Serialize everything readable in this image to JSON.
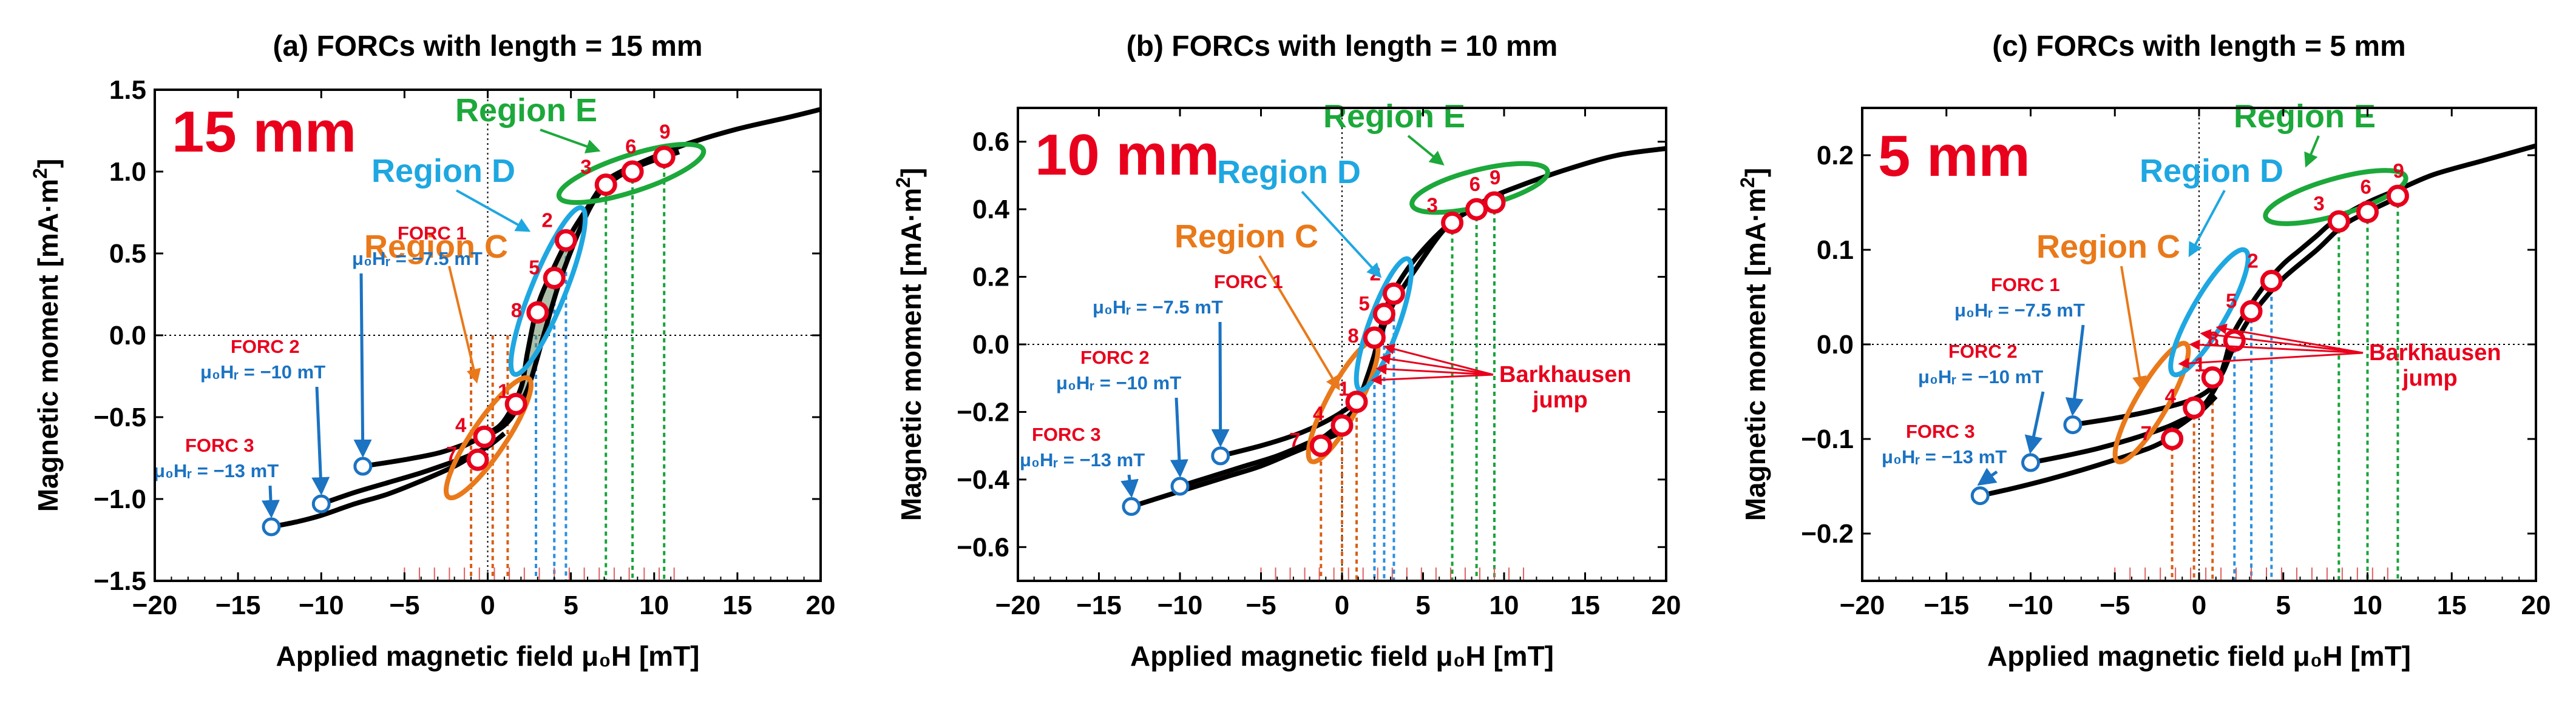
{
  "colors": {
    "red": "#e8001c",
    "blue": "#1b73c2",
    "green": "#1ca83a",
    "cyan": "#1ea7e1",
    "orange": "#e9791a",
    "loop_fill": "#6a8a62",
    "curve": "#000000",
    "guide_orange": "#d95f16",
    "guide_blue": "#2a8fe0",
    "guide_green": "#18a33a"
  },
  "labels": {
    "region_c": "Region C",
    "region_d": "Region D",
    "region_e": "Region E",
    "barkhausen_1": "Barkhausen",
    "barkhausen_2": "jump",
    "forc1": "FORC 1",
    "forc2": "FORC 2",
    "forc3": "FORC 3",
    "hr1": "μ₀Hᵣ = −7.5 mT",
    "hr2": "μ₀Hᵣ = −10 mT",
    "hr3": "μ₀Hᵣ = −13 mT",
    "point_numbers": [
      "1",
      "2",
      "3",
      "4",
      "5",
      "6",
      "7",
      "8",
      "9"
    ]
  },
  "chart_data": [
    {
      "type": "line",
      "title": "(a) FORCs with length = 15 mm",
      "sample_label": "15 mm",
      "xlabel": "Applied magnetic field μ₀H [mT]",
      "ylabel": "Magnetic moment [mA·m²]",
      "ylabel_main": "Magnetic moment [mA·m",
      "ylabel_sup": "2",
      "ylabel_end": "]",
      "xlim": [
        -20,
        20
      ],
      "ylim": [
        -1.5,
        1.5
      ],
      "xticks": [
        -20,
        -15,
        -10,
        -5,
        0,
        5,
        10,
        15,
        20
      ],
      "yticks": [
        -1.5,
        -1.0,
        -0.5,
        0.0,
        0.5,
        1.0,
        1.5
      ],
      "xtick_labels": [
        "−20",
        "−15",
        "−10",
        "−5",
        "0",
        "5",
        "10",
        "15",
        "20"
      ],
      "ytick_labels": [
        "−1.5",
        "−1.0",
        "−0.5",
        "0.0",
        "0.5",
        "1.0",
        "1.5"
      ],
      "upper_branch": {
        "x": [
          -1.5,
          0,
          1,
          2,
          2.4,
          3,
          4,
          5,
          6,
          7,
          8,
          10,
          12,
          15,
          18,
          20
        ],
        "y": [
          -0.68,
          -0.6,
          -0.52,
          -0.32,
          -0.1,
          0.18,
          0.42,
          0.62,
          0.78,
          0.93,
          1.0,
          1.09,
          1.17,
          1.26,
          1.33,
          1.38
        ]
      },
      "forc_curves": [
        {
          "name": "FORC 1",
          "hr": -7.5,
          "x": [
            -7.5,
            -5,
            -3,
            -1.5,
            0,
            1,
            1.7,
            2.5,
            3.5,
            4.5,
            6,
            7.2,
            9,
            11.5
          ],
          "y": [
            -0.8,
            -0.76,
            -0.72,
            -0.67,
            -0.61,
            -0.55,
            -0.46,
            -0.3,
            0.05,
            0.38,
            0.75,
            0.92,
            1.03,
            1.12
          ]
        },
        {
          "name": "FORC 2",
          "hr": -10,
          "x": [
            -10,
            -8,
            -6,
            -4,
            -2,
            -1,
            0,
            1
          ],
          "y": [
            -1.03,
            -0.96,
            -0.9,
            -0.84,
            -0.77,
            -0.73,
            -0.68,
            -0.6
          ]
        },
        {
          "name": "FORC 3",
          "hr": -13,
          "x": [
            -13,
            -11.5,
            -10,
            -8,
            -6,
            -4,
            -2,
            -1
          ],
          "y": [
            -1.17,
            -1.14,
            -1.1,
            -1.03,
            -0.97,
            -0.89,
            -0.8,
            -0.74
          ]
        }
      ],
      "reversal_points": [
        {
          "x": -7.5,
          "y": -0.8
        },
        {
          "x": -10,
          "y": -1.03
        },
        {
          "x": -13,
          "y": -1.17
        }
      ],
      "points": [
        {
          "n": "1",
          "x": 1.7,
          "y": -0.42
        },
        {
          "n": "2",
          "x": 4.7,
          "y": 0.58
        },
        {
          "n": "3",
          "x": 7.1,
          "y": 0.92
        },
        {
          "n": "4",
          "x": -0.2,
          "y": -0.62
        },
        {
          "n": "5",
          "x": 4.0,
          "y": 0.35
        },
        {
          "n": "6",
          "x": 8.7,
          "y": 1.0
        },
        {
          "n": "7",
          "x": -0.6,
          "y": -0.76
        },
        {
          "n": "8",
          "x": 3.0,
          "y": 0.14
        },
        {
          "n": "9",
          "x": 10.6,
          "y": 1.09
        }
      ],
      "guides": [
        {
          "x": -1.0,
          "color": "orange"
        },
        {
          "x": 0.3,
          "color": "orange"
        },
        {
          "x": 1.2,
          "color": "orange"
        },
        {
          "x": 2.9,
          "color": "blue"
        },
        {
          "x": 4.0,
          "color": "blue"
        },
        {
          "x": 4.7,
          "color": "blue"
        },
        {
          "x": 7.1,
          "color": "green"
        },
        {
          "x": 8.7,
          "color": "green"
        },
        {
          "x": 10.6,
          "color": "green"
        }
      ],
      "barkhausen": false
    },
    {
      "type": "line",
      "title": "(b) FORCs with length = 10 mm",
      "sample_label": "10 mm",
      "xlabel": "Applied magnetic field μ₀H [mT]",
      "ylabel": "Magnetic moment [mA·m²]",
      "ylabel_main": "Magnetic moment [mA·m",
      "ylabel_sup": "2",
      "ylabel_end": "]",
      "xlim": [
        -20,
        20
      ],
      "ylim": [
        -0.7,
        0.7
      ],
      "xticks": [
        -20,
        -15,
        -10,
        -5,
        0,
        5,
        10,
        15,
        20
      ],
      "yticks": [
        -0.6,
        -0.4,
        -0.2,
        0.0,
        0.2,
        0.4,
        0.6
      ],
      "xtick_labels": [
        "−20",
        "−15",
        "−10",
        "−5",
        "0",
        "5",
        "10",
        "15",
        "20"
      ],
      "ytick_labels": [
        "−0.6",
        "−0.4",
        "−0.2",
        "0.0",
        "0.2",
        "0.4",
        "0.6"
      ],
      "upper_branch": {
        "x": [
          -1,
          0,
          1,
          1.5,
          2,
          2.5,
          3,
          4,
          5,
          6,
          7,
          9,
          11,
          14,
          17,
          20
        ],
        "y": [
          -0.27,
          -0.23,
          -0.18,
          -0.12,
          -0.03,
          0.07,
          0.14,
          0.22,
          0.28,
          0.33,
          0.37,
          0.43,
          0.47,
          0.52,
          0.56,
          0.58
        ]
      },
      "forc_curves": [
        {
          "name": "FORC 1",
          "hr": -7.5,
          "x": [
            -7.5,
            -5,
            -3,
            -1.5,
            0,
            1,
            1.6,
            2.2,
            2.8,
            3.4,
            4.5,
            6.5,
            8.5,
            10
          ],
          "y": [
            -0.33,
            -0.3,
            -0.27,
            -0.24,
            -0.2,
            -0.16,
            -0.09,
            0.0,
            0.08,
            0.14,
            0.22,
            0.35,
            0.41,
            0.44
          ]
        },
        {
          "name": "FORC 2",
          "hr": -10,
          "x": [
            -10,
            -8,
            -6,
            -4,
            -2,
            -1,
            0,
            1
          ],
          "y": [
            -0.42,
            -0.39,
            -0.36,
            -0.33,
            -0.29,
            -0.27,
            -0.24,
            -0.19
          ]
        },
        {
          "name": "FORC 3",
          "hr": -13,
          "x": [
            -13,
            -11,
            -9,
            -7,
            -5,
            -3,
            -1,
            0
          ],
          "y": [
            -0.48,
            -0.45,
            -0.42,
            -0.39,
            -0.36,
            -0.32,
            -0.28,
            -0.26
          ]
        }
      ],
      "reversal_points": [
        {
          "x": -7.5,
          "y": -0.33
        },
        {
          "x": -10,
          "y": -0.42
        },
        {
          "x": -13,
          "y": -0.48
        }
      ],
      "points": [
        {
          "n": "1",
          "x": 0.9,
          "y": -0.17
        },
        {
          "n": "2",
          "x": 3.2,
          "y": 0.15
        },
        {
          "n": "3",
          "x": 6.8,
          "y": 0.36
        },
        {
          "n": "4",
          "x": 0.0,
          "y": -0.24
        },
        {
          "n": "5",
          "x": 2.6,
          "y": 0.09
        },
        {
          "n": "6",
          "x": 8.3,
          "y": 0.4
        },
        {
          "n": "7",
          "x": -1.3,
          "y": -0.3
        },
        {
          "n": "8",
          "x": 2.0,
          "y": 0.02
        },
        {
          "n": "9",
          "x": 9.4,
          "y": 0.42
        }
      ],
      "guides": [
        {
          "x": -1.3,
          "color": "orange"
        },
        {
          "x": 0.0,
          "color": "orange"
        },
        {
          "x": 0.9,
          "color": "orange"
        },
        {
          "x": 2.0,
          "color": "blue"
        },
        {
          "x": 2.6,
          "color": "blue"
        },
        {
          "x": 3.2,
          "color": "blue"
        },
        {
          "x": 6.8,
          "color": "green"
        },
        {
          "x": 8.3,
          "color": "green"
        },
        {
          "x": 9.4,
          "color": "green"
        }
      ],
      "barkhausen": true
    },
    {
      "type": "line",
      "title": "(c) FORCs with length = 5 mm",
      "sample_label": "5 mm",
      "xlabel": "Applied magnetic field μ₀H [mT]",
      "ylabel": "Magnetic moment [mA·m²]",
      "ylabel_main": "Magnetic moment [mA·m",
      "ylabel_sup": "2",
      "ylabel_end": "]",
      "xlim": [
        -20,
        20
      ],
      "ylim": [
        -0.25,
        0.25
      ],
      "xticks": [
        -20,
        -15,
        -10,
        -5,
        0,
        5,
        10,
        15,
        20
      ],
      "yticks": [
        -0.2,
        -0.1,
        0.0,
        0.1,
        0.2
      ],
      "xtick_labels": [
        "−20",
        "−15",
        "−10",
        "−5",
        "0",
        "5",
        "10",
        "15",
        "20"
      ],
      "ytick_labels": [
        "−0.2",
        "−0.1",
        "0.0",
        "0.1",
        "0.2"
      ],
      "upper_branch": {
        "x": [
          -1.5,
          0,
          1,
          1.5,
          2,
          3,
          4,
          5,
          6,
          7,
          8,
          10,
          12,
          14,
          17,
          20
        ],
        "y": [
          -0.09,
          -0.07,
          -0.045,
          -0.02,
          0.01,
          0.04,
          0.065,
          0.085,
          0.1,
          0.115,
          0.13,
          0.15,
          0.165,
          0.18,
          0.195,
          0.21
        ]
      },
      "forc_curves": [
        {
          "name": "FORC 1",
          "hr": -7.5,
          "x": [
            -7.5,
            -5,
            -3,
            -1,
            0,
            0.8,
            1.4,
            2,
            2.8,
            3.6,
            5,
            7,
            8.5,
            10,
            12
          ],
          "y": [
            -0.085,
            -0.078,
            -0.071,
            -0.062,
            -0.055,
            -0.045,
            -0.03,
            -0.005,
            0.022,
            0.042,
            0.07,
            0.1,
            0.125,
            0.14,
            0.157
          ]
        },
        {
          "name": "FORC 2",
          "hr": -10,
          "x": [
            -10,
            -8,
            -6,
            -4,
            -2,
            -1,
            0,
            1
          ],
          "y": [
            -0.125,
            -0.118,
            -0.11,
            -0.1,
            -0.088,
            -0.08,
            -0.072,
            -0.055
          ]
        },
        {
          "name": "FORC 3",
          "hr": -13,
          "x": [
            -13,
            -11,
            -9,
            -7,
            -5,
            -3,
            -2,
            -1
          ],
          "y": [
            -0.16,
            -0.152,
            -0.143,
            -0.133,
            -0.122,
            -0.11,
            -0.102,
            -0.095
          ]
        }
      ],
      "reversal_points": [
        {
          "x": -7.5,
          "y": -0.085
        },
        {
          "x": -10,
          "y": -0.125
        },
        {
          "x": -13,
          "y": -0.16
        }
      ],
      "points": [
        {
          "n": "1",
          "x": 0.8,
          "y": -0.035
        },
        {
          "n": "2",
          "x": 4.3,
          "y": 0.067
        },
        {
          "n": "3",
          "x": 8.3,
          "y": 0.13
        },
        {
          "n": "4",
          "x": -0.3,
          "y": -0.067
        },
        {
          "n": "5",
          "x": 3.1,
          "y": 0.035
        },
        {
          "n": "6",
          "x": 10.0,
          "y": 0.14
        },
        {
          "n": "7",
          "x": -1.6,
          "y": -0.1
        },
        {
          "n": "8",
          "x": 2.1,
          "y": 0.004
        },
        {
          "n": "9",
          "x": 11.8,
          "y": 0.157
        }
      ],
      "guides": [
        {
          "x": -1.6,
          "color": "orange"
        },
        {
          "x": -0.3,
          "color": "orange"
        },
        {
          "x": 0.8,
          "color": "orange"
        },
        {
          "x": 2.1,
          "color": "blue"
        },
        {
          "x": 3.1,
          "color": "blue"
        },
        {
          "x": 4.3,
          "color": "blue"
        },
        {
          "x": 8.3,
          "color": "green"
        },
        {
          "x": 10.0,
          "color": "green"
        },
        {
          "x": 11.8,
          "color": "green"
        }
      ],
      "barkhausen": true
    }
  ]
}
